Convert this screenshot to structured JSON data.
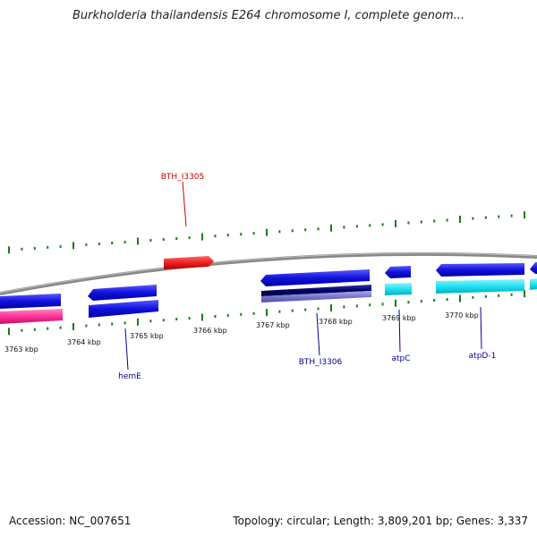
{
  "title": "Burkholderia thailandensis E264 chromosome I, complete genom...",
  "footer": {
    "accession_label": "Accession: NC_007651",
    "info": "Topology: circular; Length: 3,809,201 bp; Genes: 3,337"
  },
  "ticks": [
    {
      "label": "3763 kbp"
    },
    {
      "label": "3764 kbp"
    },
    {
      "label": "3765 kbp"
    },
    {
      "label": "3766 kbp"
    },
    {
      "label": "3767 kbp"
    },
    {
      "label": "3768 kbp"
    },
    {
      "label": "3769 kbp"
    },
    {
      "label": "3770 kbp"
    }
  ],
  "gene_labels": [
    {
      "text": "BTH_I3305",
      "color": "#cc0000"
    },
    {
      "text": "hemE",
      "color": "#000099"
    },
    {
      "text": "BTH_I3306",
      "color": "#000099"
    },
    {
      "text": "atpC",
      "color": "#000099"
    },
    {
      "text": "atpD-1",
      "color": "#000099"
    }
  ],
  "colors": {
    "backbone": "#888888",
    "tick": "#1a7a1a",
    "forward_gene": "#ee2222",
    "reverse_gene": "#1111dd",
    "rna": "#ff3399",
    "cyan": "#22e0f0",
    "dark_navy": "#000066",
    "lavender": "#7777cc"
  }
}
